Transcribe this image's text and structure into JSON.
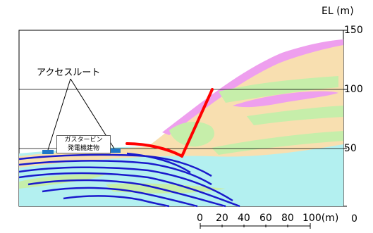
{
  "elevation_axis": {
    "unit_label": "EL (m)",
    "ticks": [
      "150",
      "100",
      "50",
      "0"
    ]
  },
  "labels": {
    "access_route": "アクセスルート",
    "building_line1": "ガスタービン",
    "building_line2": "発電機建物"
  },
  "scale_bar": {
    "labels": [
      "0",
      "20",
      "40",
      "60",
      "80",
      "100(m)"
    ]
  },
  "colors": {
    "sea": "#b3f0f0",
    "sand": "#f8dfb0",
    "green": "#c6eeaa",
    "pink": "#ee9fee",
    "slip_line": "#ff0000",
    "thin_layers": "#1a1acc",
    "building": "#1e78c8"
  }
}
